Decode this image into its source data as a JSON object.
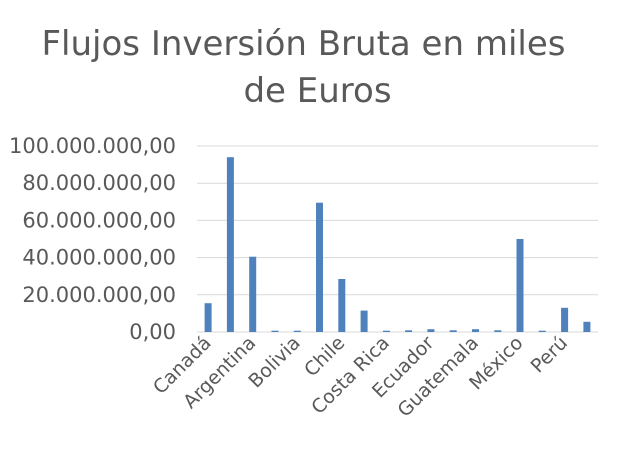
{
  "chart_data": {
    "type": "bar",
    "title_lines": [
      "Flujos Inversión Bruta en miles",
      "de Euros"
    ],
    "yticks": [
      "0,00",
      "20.000.000,00",
      "40.000.000,00",
      "60.000.000,00",
      "80.000.000,00",
      "100.000.000,00"
    ],
    "ylim": [
      0,
      100000000
    ],
    "grid": true,
    "bar_color": "#4f81bd",
    "categories": [
      "Canadá",
      "",
      "Argentina",
      "",
      "Bolivia",
      "",
      "Chile",
      "",
      "Costa Rica",
      "",
      "Ecuador",
      "",
      "Guatemala",
      "",
      "México",
      "",
      "Perú",
      ""
    ],
    "values": [
      15500000,
      94000000,
      40500000,
      700000,
      700000,
      69500000,
      28500000,
      11500000,
      700000,
      900000,
      1500000,
      900000,
      1500000,
      900000,
      50000000,
      700000,
      13000000,
      5500000
    ]
  }
}
